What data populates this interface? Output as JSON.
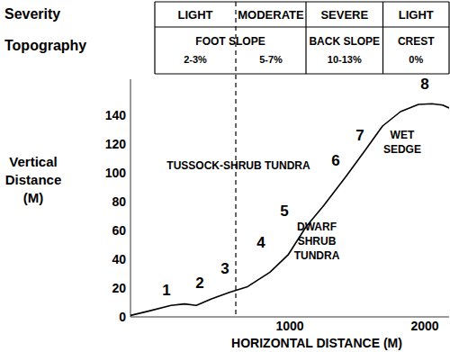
{
  "chart_data": {
    "type": "line",
    "xlabel": "HORIZONTAL DISTANCE (M)",
    "ylabel": "Vertical Distance (M)",
    "x": [
      -180,
      -47,
      120,
      220,
      307,
      420,
      553,
      687,
      853,
      987,
      1120,
      1253,
      1420,
      1553,
      1687,
      1820,
      1953,
      2053,
      2133,
      2180
    ],
    "values": [
      1,
      4,
      8,
      9,
      8,
      12.5,
      17,
      21,
      31,
      43,
      62.5,
      77.5,
      98,
      115,
      132.5,
      142.5,
      147.5,
      148,
      147,
      145
    ],
    "color": "#000000",
    "xlim": [
      -180,
      2180
    ],
    "xticks": [
      1000,
      2000
    ],
    "ylim": [
      0,
      165
    ],
    "yticks": [
      0,
      20,
      40,
      60,
      80,
      100,
      120,
      140
    ],
    "boundary_line": {
      "x": 600,
      "line_style": "dashed"
    },
    "severity": {
      "label": "Severity",
      "zones": [
        {
          "label": "LIGHT",
          "x0": 0,
          "x1": 600
        },
        {
          "label": "MODERATE",
          "x0": 600,
          "x1": 1120
        },
        {
          "label": "SEVERE",
          "x0": 1120,
          "x1": 1690
        },
        {
          "label": "LIGHT",
          "x0": 1690,
          "x1": 2180
        }
      ]
    },
    "topography": {
      "label": "Topography",
      "zones": [
        {
          "label": "FOOT SLOPE",
          "x0": 0,
          "x1": 1120,
          "grades": [
            {
              "label": "2-3%",
              "x0": 0,
              "x1": 600
            },
            {
              "label": "5-7%",
              "x0": 600,
              "x1": 1120
            }
          ]
        },
        {
          "label": "BACK SLOPE",
          "x0": 1120,
          "x1": 1690,
          "grades": [
            {
              "label": "10-13%",
              "x0": 1120,
              "x1": 1690
            }
          ]
        },
        {
          "label": "CREST",
          "x0": 1690,
          "x1": 2180,
          "grades": [
            {
              "label": "0%",
              "x0": 1690,
              "x1": 2180
            }
          ]
        }
      ]
    },
    "point_labels": [
      {
        "text": "1",
        "x": 87,
        "y": 19
      },
      {
        "text": "2",
        "x": 333,
        "y": 24
      },
      {
        "text": "3",
        "x": 520,
        "y": 34
      },
      {
        "text": "4",
        "x": 787,
        "y": 52
      },
      {
        "text": "5",
        "x": 960,
        "y": 74
      },
      {
        "text": "6",
        "x": 1340,
        "y": 109
      },
      {
        "text": "7",
        "x": 1520,
        "y": 126
      },
      {
        "text": "8",
        "x": 2000,
        "y": 162
      }
    ],
    "vegetation": [
      {
        "lines": [
          "TUSSOCK-SHRUB TUNDRA"
        ],
        "x": 620,
        "y": 105
      },
      {
        "lines": [
          "DWARF",
          "SHRUB",
          "TUNDRA"
        ],
        "x": 1200,
        "y": 52.5
      },
      {
        "lines": [
          "WET",
          "SEDGE"
        ],
        "x": 1833,
        "y": 121
      }
    ]
  }
}
